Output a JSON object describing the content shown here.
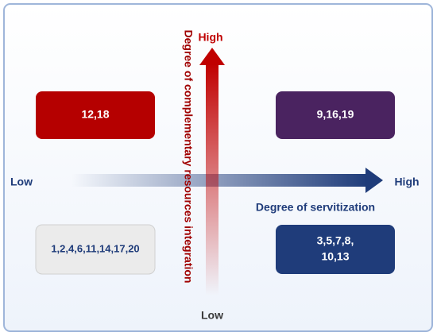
{
  "vertical_axis": {
    "label": "Degree of complementary resources integration",
    "high": "High",
    "low": "Low"
  },
  "horizontal_axis": {
    "label": "Degree of servitization",
    "high": "High",
    "low": "Low"
  },
  "quadrants": [
    {
      "lines": [
        "12,18"
      ]
    },
    {
      "lines": [
        "9,16,19"
      ]
    },
    {
      "lines": [
        "1,2,4,6,11,14,17,20"
      ]
    },
    {
      "lines": [
        "3,5,7,8,",
        "10,13"
      ]
    }
  ]
}
